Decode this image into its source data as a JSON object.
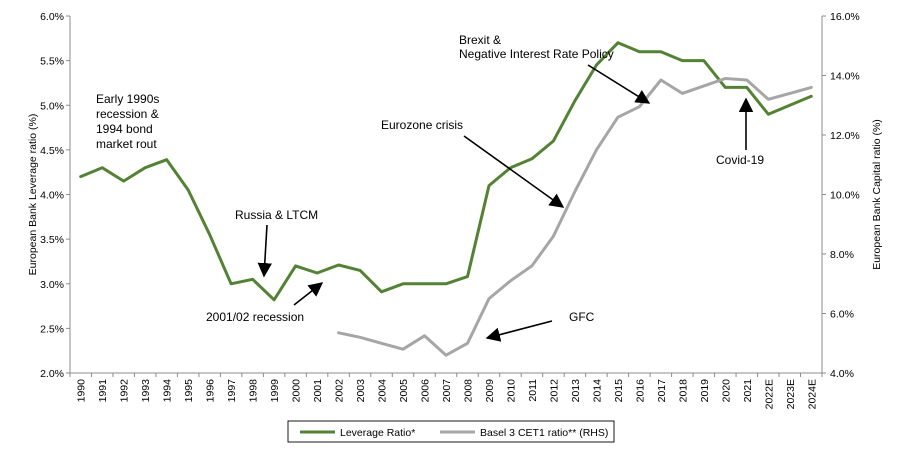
{
  "chart_data": {
    "type": "line",
    "categories": [
      "1990",
      "1991",
      "1992",
      "1993",
      "1994",
      "1995",
      "1996",
      "1997",
      "1998",
      "1999",
      "2000",
      "2001",
      "2002",
      "2003",
      "2004",
      "2005",
      "2006",
      "2007",
      "2008",
      "2009",
      "2010",
      "2011",
      "2012",
      "2013",
      "2014",
      "2015",
      "2016",
      "2017",
      "2018",
      "2019",
      "2020",
      "2021",
      "2022E",
      "2023E",
      "2024E"
    ],
    "series": [
      {
        "name": "Leverage Ratio*",
        "axis": "left",
        "color": "#548235",
        "values": [
          4.2,
          4.3,
          4.15,
          4.3,
          4.39,
          4.05,
          3.55,
          3.0,
          3.05,
          2.82,
          3.2,
          3.12,
          3.21,
          3.15,
          2.91,
          3.0,
          3.0,
          3.0,
          3.08,
          4.1,
          4.3,
          4.4,
          4.6,
          5.05,
          5.45,
          5.7,
          5.6,
          5.6,
          5.5,
          5.5,
          5.2,
          5.2,
          4.9,
          5.0,
          5.1
        ]
      },
      {
        "name": "Basel 3 CET1 ratio** (RHS)",
        "axis": "right",
        "color": "#a6a6a6",
        "values": [
          null,
          null,
          null,
          null,
          null,
          null,
          null,
          null,
          null,
          null,
          null,
          null,
          5.35,
          5.2,
          5.0,
          4.8,
          5.25,
          4.6,
          5.0,
          6.5,
          7.1,
          7.6,
          8.6,
          10.1,
          11.5,
          12.6,
          12.95,
          13.85,
          13.4,
          13.65,
          13.9,
          13.85,
          13.2,
          13.4,
          13.6
        ]
      }
    ],
    "y_left": {
      "label": "European Bank Leverage ratio (%)",
      "lim": [
        2.0,
        6.0
      ],
      "ticks": [
        "2.0%",
        "2.5%",
        "3.0%",
        "3.5%",
        "4.0%",
        "4.5%",
        "5.0%",
        "5.5%",
        "6.0%"
      ]
    },
    "y_right": {
      "label": "European Bank Capital ratio (%)",
      "lim": [
        4.0,
        16.0
      ],
      "ticks": [
        "4.0%",
        "6.0%",
        "8.0%",
        "10.0%",
        "12.0%",
        "14.0%",
        "16.0%"
      ]
    },
    "grid": false,
    "legend_position": "bottom-center",
    "annotations": [
      {
        "lines": [
          "Early 1990s",
          "recession &",
          "1994 bond",
          "market rout"
        ]
      },
      {
        "lines": [
          "Russia & LTCM"
        ],
        "arrow": true
      },
      {
        "lines": [
          "2001/02 recession"
        ],
        "arrow": true
      },
      {
        "lines": [
          "Eurozone crisis"
        ],
        "arrow": true
      },
      {
        "lines": [
          "Brexit &",
          "Negative Interest Rate Policy"
        ],
        "arrow": true
      },
      {
        "lines": [
          "GFC"
        ],
        "arrow": true
      },
      {
        "lines": [
          "Covid-19"
        ],
        "arrow": true
      }
    ]
  }
}
